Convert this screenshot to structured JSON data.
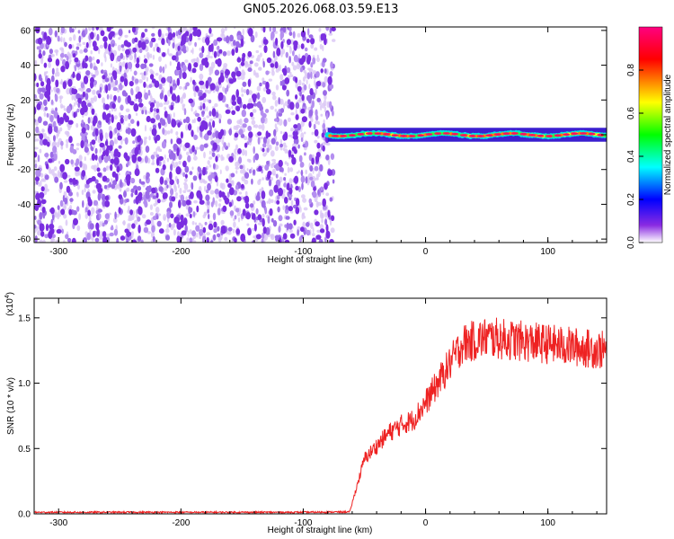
{
  "title": "GN05.2026.068.03.59.E13",
  "colors": {
    "snr_line": "#ee2222",
    "noise_points": "#7a2ee0"
  },
  "chart_data": [
    {
      "type": "heatmap",
      "xlabel": "Height of straight line (km)",
      "ylabel": "Frequency (Hz)",
      "xlim": [
        -320,
        148
      ],
      "ylim": [
        -62,
        62
      ],
      "x_ticks": [
        "-300",
        "-200",
        "-100",
        "0",
        "100"
      ],
      "y_ticks": [
        "-60",
        "-40",
        "-20",
        "0",
        "20",
        "40",
        "60"
      ],
      "noise_region_x": [
        -320,
        -75
      ],
      "signal_band_x": [
        -80,
        148
      ],
      "signal_band_frequency_hz": [
        -4,
        4
      ],
      "colorbar": {
        "label": "Normalized spectral amplitude",
        "range": [
          0,
          1
        ],
        "ticks": [
          "0.0",
          "0.2",
          "0.4",
          "0.6",
          "0.8"
        ],
        "colormap": [
          "#ffffff",
          "#8a2be2",
          "#0000ff",
          "#00ffff",
          "#00ff00",
          "#ffff00",
          "#ff0000",
          "#ff0080"
        ]
      }
    },
    {
      "type": "line",
      "xlabel": "Height of straight line (km)",
      "ylabel": "SNR (10 * v/v)",
      "multiplier": "(x10",
      "multiplier_exp": "4",
      "multiplier_close": ")",
      "xlim": [
        -320,
        148
      ],
      "ylim": [
        0,
        16500
      ],
      "x_ticks": [
        "-300",
        "-200",
        "-100",
        "0",
        "100"
      ],
      "y_ticks": [
        "0.0",
        "0.5",
        "1.0",
        "1.5"
      ],
      "series": [
        {
          "x": [
            -320,
            -100,
            -62,
            -58,
            -50,
            -40,
            -30,
            -20,
            -10,
            0,
            10,
            20,
            30,
            50,
            70,
            100,
            148
          ],
          "y": [
            120,
            120,
            150,
            1500,
            4200,
            5200,
            6200,
            6800,
            7200,
            8500,
            10000,
            11500,
            13000,
            13500,
            13300,
            13000,
            12500
          ]
        }
      ]
    }
  ]
}
